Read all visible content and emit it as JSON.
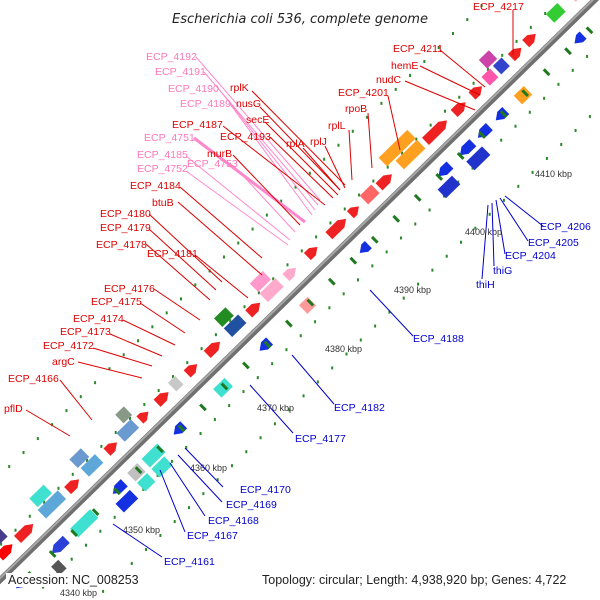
{
  "title": "Escherichia coli 536, complete genome",
  "footer": {
    "accession": "Accession: NC_008253",
    "topology": "Topology: circular; Length: 4,938,920 bp; Genes: 4,722"
  },
  "colors": {
    "forward_label": "#dd0000",
    "reverse_label": "#0000cc",
    "pink_label": "#ff77bb",
    "axis": "#808080",
    "tick": "#229922"
  },
  "kbp_labels": [
    "4340 kbp",
    "4350 kbp",
    "4360 kbp",
    "4370 kbp",
    "4380 kbp",
    "4390 kbp",
    "4400 kbp",
    "4410 kbp"
  ],
  "upper_labels": [
    {
      "text": "ECP_4217",
      "color": "red"
    },
    {
      "text": "ECP_4211",
      "color": "red"
    },
    {
      "text": "hemE",
      "color": "red"
    },
    {
      "text": "nudC",
      "color": "red"
    },
    {
      "text": "ECP_4192",
      "color": "pink"
    },
    {
      "text": "ECP_4191",
      "color": "pink"
    },
    {
      "text": "ECP_4190",
      "color": "pink"
    },
    {
      "text": "ECP_4189",
      "color": "pink"
    },
    {
      "text": "rplK",
      "color": "red"
    },
    {
      "text": "nusG",
      "color": "red"
    },
    {
      "text": "ECP_4201",
      "color": "red"
    },
    {
      "text": "rpoB",
      "color": "red"
    },
    {
      "text": "secE",
      "color": "red"
    },
    {
      "text": "ECP_4187",
      "color": "red"
    },
    {
      "text": "rplL",
      "color": "red"
    },
    {
      "text": "ECP_4751",
      "color": "pink"
    },
    {
      "text": "ECP_4193",
      "color": "red"
    },
    {
      "text": "rplA",
      "color": "red"
    },
    {
      "text": "rplJ",
      "color": "red"
    },
    {
      "text": "murB",
      "color": "red"
    },
    {
      "text": "ECP_4185",
      "color": "pink"
    },
    {
      "text": "ECP_4752",
      "color": "pink"
    },
    {
      "text": "ECP_4753",
      "color": "pink"
    },
    {
      "text": "ECP_4184",
      "color": "red"
    },
    {
      "text": "btuB",
      "color": "red"
    },
    {
      "text": "ECP_4180",
      "color": "red"
    },
    {
      "text": "ECP_4179",
      "color": "red"
    },
    {
      "text": "ECP_4178",
      "color": "red"
    },
    {
      "text": "ECP_4181",
      "color": "red"
    },
    {
      "text": "ECP_4176",
      "color": "red"
    },
    {
      "text": "ECP_4175",
      "color": "red"
    },
    {
      "text": "ECP_4174",
      "color": "red"
    },
    {
      "text": "ECP_4173",
      "color": "red"
    },
    {
      "text": "ECP_4172",
      "color": "red"
    },
    {
      "text": "argC",
      "color": "red"
    },
    {
      "text": "ECP_4166",
      "color": "red"
    },
    {
      "text": "pflD",
      "color": "red"
    }
  ],
  "lower_labels": [
    {
      "text": "ECP_4206",
      "color": "blue"
    },
    {
      "text": "ECP_4205",
      "color": "blue"
    },
    {
      "text": "ECP_4204",
      "color": "blue"
    },
    {
      "text": "thiG",
      "color": "blue"
    },
    {
      "text": "thiH",
      "color": "blue"
    },
    {
      "text": "ECP_4188",
      "color": "blue"
    },
    {
      "text": "ECP_4182",
      "color": "blue"
    },
    {
      "text": "ECP_4177",
      "color": "blue"
    },
    {
      "text": "ECP_4170",
      "color": "blue"
    },
    {
      "text": "ECP_4169",
      "color": "blue"
    },
    {
      "text": "ECP_4168",
      "color": "blue"
    },
    {
      "text": "ECP_4167",
      "color": "blue"
    },
    {
      "text": "ECP_4161",
      "color": "blue"
    }
  ]
}
